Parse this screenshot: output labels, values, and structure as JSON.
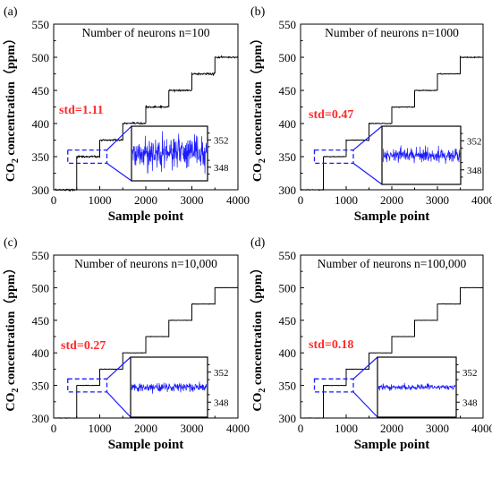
{
  "chart_data": [
    {
      "type": "line",
      "panel_label": "(a)",
      "title": "Number of neurons n=100",
      "xlabel": "Sample point",
      "ylabel_main": "CO",
      "ylabel_sub": "2",
      "ylabel_rest": " concentration（ppm）",
      "xlim": [
        0,
        4000
      ],
      "ylim": [
        300,
        550
      ],
      "xticks": [
        "0",
        "1000",
        "2000",
        "3000",
        "4000"
      ],
      "yticks": [
        "300",
        "350",
        "400",
        "450",
        "500",
        "550"
      ],
      "series": [
        {
          "segments": [
            {
              "x_start": 0,
              "x_end": 500,
              "y": 300
            },
            {
              "x_start": 500,
              "x_end": 1000,
              "y": 350
            },
            {
              "x_start": 1000,
              "x_end": 1500,
              "y": 375
            },
            {
              "x_start": 1500,
              "x_end": 2000,
              "y": 400
            },
            {
              "x_start": 2000,
              "x_end": 2500,
              "y": 425
            },
            {
              "x_start": 2500,
              "x_end": 3000,
              "y": 450
            },
            {
              "x_start": 3000,
              "x_end": 3500,
              "y": 475
            },
            {
              "x_start": 3500,
              "x_end": 4000,
              "y": 500
            }
          ],
          "noise_std": 1.11
        }
      ],
      "annotation": "std=1.11",
      "inset": {
        "ylim": [
          346,
          354
        ],
        "yticks": [
          "352",
          "348"
        ],
        "mean": 350,
        "std": 1.11,
        "zoom_x": [
          500,
          1000
        ],
        "zoom_y": [
          340,
          360
        ]
      }
    },
    {
      "type": "line",
      "panel_label": "(b)",
      "title": "Number of neurons n=1000",
      "xlabel": "Sample point",
      "ylabel_main": "CO",
      "ylabel_sub": "2",
      "ylabel_rest": " concentration（ppm）",
      "xlim": [
        0,
        4000
      ],
      "ylim": [
        300,
        550
      ],
      "xticks": [
        "0",
        "1000",
        "2000",
        "3000",
        "4000"
      ],
      "yticks": [
        "300",
        "350",
        "400",
        "450",
        "500",
        "550"
      ],
      "series": [
        {
          "segments": [
            {
              "x_start": 0,
              "x_end": 500,
              "y": 300
            },
            {
              "x_start": 500,
              "x_end": 1000,
              "y": 350
            },
            {
              "x_start": 1000,
              "x_end": 1500,
              "y": 375
            },
            {
              "x_start": 1500,
              "x_end": 2000,
              "y": 400
            },
            {
              "x_start": 2000,
              "x_end": 2500,
              "y": 425
            },
            {
              "x_start": 2500,
              "x_end": 3000,
              "y": 450
            },
            {
              "x_start": 3000,
              "x_end": 3500,
              "y": 475
            },
            {
              "x_start": 3500,
              "x_end": 4000,
              "y": 500
            }
          ],
          "noise_std": 0.47
        }
      ],
      "annotation": "std=0.47",
      "inset": {
        "ylim": [
          346,
          354
        ],
        "yticks": [
          "352",
          "348"
        ],
        "mean": 350,
        "std": 0.47,
        "zoom_x": [
          500,
          1000
        ],
        "zoom_y": [
          340,
          360
        ]
      }
    },
    {
      "type": "line",
      "panel_label": "(c)",
      "title": "Number of neurons n=10,000",
      "xlabel": "Sample point",
      "ylabel_main": "CO",
      "ylabel_sub": "2",
      "ylabel_rest": " concentration（ppm）",
      "xlim": [
        0,
        4000
      ],
      "ylim": [
        300,
        550
      ],
      "xticks": [
        "0",
        "1000",
        "2000",
        "3000",
        "4000"
      ],
      "yticks": [
        "300",
        "350",
        "400",
        "450",
        "500",
        "550"
      ],
      "series": [
        {
          "segments": [
            {
              "x_start": 0,
              "x_end": 500,
              "y": 300
            },
            {
              "x_start": 500,
              "x_end": 1000,
              "y": 350
            },
            {
              "x_start": 1000,
              "x_end": 1500,
              "y": 375
            },
            {
              "x_start": 1500,
              "x_end": 2000,
              "y": 400
            },
            {
              "x_start": 2000,
              "x_end": 2500,
              "y": 425
            },
            {
              "x_start": 2500,
              "x_end": 3000,
              "y": 450
            },
            {
              "x_start": 3000,
              "x_end": 3500,
              "y": 475
            },
            {
              "x_start": 3500,
              "x_end": 4000,
              "y": 500
            }
          ],
          "noise_std": 0.27
        }
      ],
      "annotation": "std=0.27",
      "inset": {
        "ylim": [
          346,
          354
        ],
        "yticks": [
          "352",
          "348"
        ],
        "mean": 350,
        "std": 0.27,
        "zoom_x": [
          500,
          1000
        ],
        "zoom_y": [
          340,
          360
        ]
      }
    },
    {
      "type": "line",
      "panel_label": "(d)",
      "title": "Number of neurons n=100,000",
      "xlabel": "Sample point",
      "ylabel_main": "CO",
      "ylabel_sub": "2",
      "ylabel_rest": " concentration（ppm）",
      "xlim": [
        0,
        4000
      ],
      "ylim": [
        300,
        550
      ],
      "xticks": [
        "0",
        "1000",
        "2000",
        "3000",
        "4000"
      ],
      "yticks": [
        "300",
        "350",
        "400",
        "450",
        "500",
        "550"
      ],
      "series": [
        {
          "segments": [
            {
              "x_start": 0,
              "x_end": 500,
              "y": 300
            },
            {
              "x_start": 500,
              "x_end": 1000,
              "y": 350
            },
            {
              "x_start": 1000,
              "x_end": 1500,
              "y": 375
            },
            {
              "x_start": 1500,
              "x_end": 2000,
              "y": 400
            },
            {
              "x_start": 2000,
              "x_end": 2500,
              "y": 425
            },
            {
              "x_start": 2500,
              "x_end": 3000,
              "y": 450
            },
            {
              "x_start": 3000,
              "x_end": 3500,
              "y": 475
            },
            {
              "x_start": 3500,
              "x_end": 4000,
              "y": 500
            }
          ],
          "noise_std": 0.18
        }
      ],
      "annotation": "std=0.18",
      "inset": {
        "ylim": [
          346,
          354
        ],
        "yticks": [
          "352",
          "348"
        ],
        "mean": 350,
        "std": 0.18,
        "zoom_x": [
          500,
          1000
        ],
        "zoom_y": [
          340,
          360
        ]
      }
    }
  ],
  "colors": {
    "axis": "#000000",
    "step_line": "#000000",
    "inset_line": "#1a1aff",
    "zoom_box": "#1a1aff",
    "annotation": "#ff2a2a",
    "inset_frame": "#000000"
  }
}
